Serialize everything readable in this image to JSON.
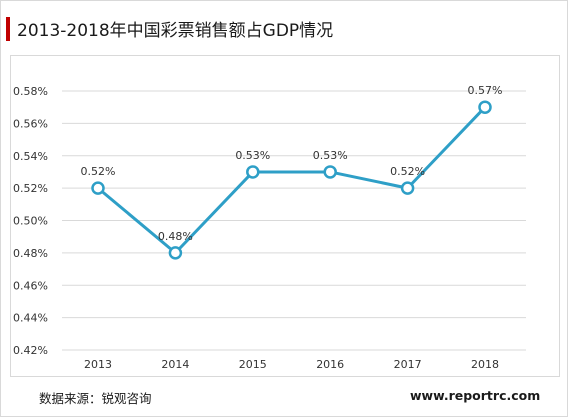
{
  "header": {
    "title": "2013-2018年中国彩票销售额占GDP情况"
  },
  "footer": {
    "source": "数据来源：锐观咨询",
    "site": "www.reportrc.com"
  },
  "colors": {
    "accent": "#c00000",
    "line": "#2e9fc7",
    "grid": "#d9d9d9"
  },
  "chart_data": {
    "type": "line",
    "title": "2013-2018年中国彩票销售额占GDP情况",
    "xlabel": "",
    "ylabel": "",
    "categories": [
      "2013",
      "2014",
      "2015",
      "2016",
      "2017",
      "2018"
    ],
    "series": [
      {
        "values": [
          0.52,
          0.48,
          0.53,
          0.53,
          0.52,
          0.57
        ],
        "labels": [
          "0.52%",
          "0.48%",
          "0.53%",
          "0.53%",
          "0.52%",
          "0.57%"
        ]
      }
    ],
    "ylim": [
      0.42,
      0.58
    ],
    "yticks": [
      0.42,
      0.44,
      0.46,
      0.48,
      0.5,
      0.52,
      0.54,
      0.56,
      0.58
    ],
    "ytick_labels": [
      "0.42%",
      "0.44%",
      "0.46%",
      "0.48%",
      "0.50%",
      "0.52%",
      "0.54%",
      "0.56%",
      "0.58%"
    ],
    "grid": true,
    "legend": "none"
  }
}
